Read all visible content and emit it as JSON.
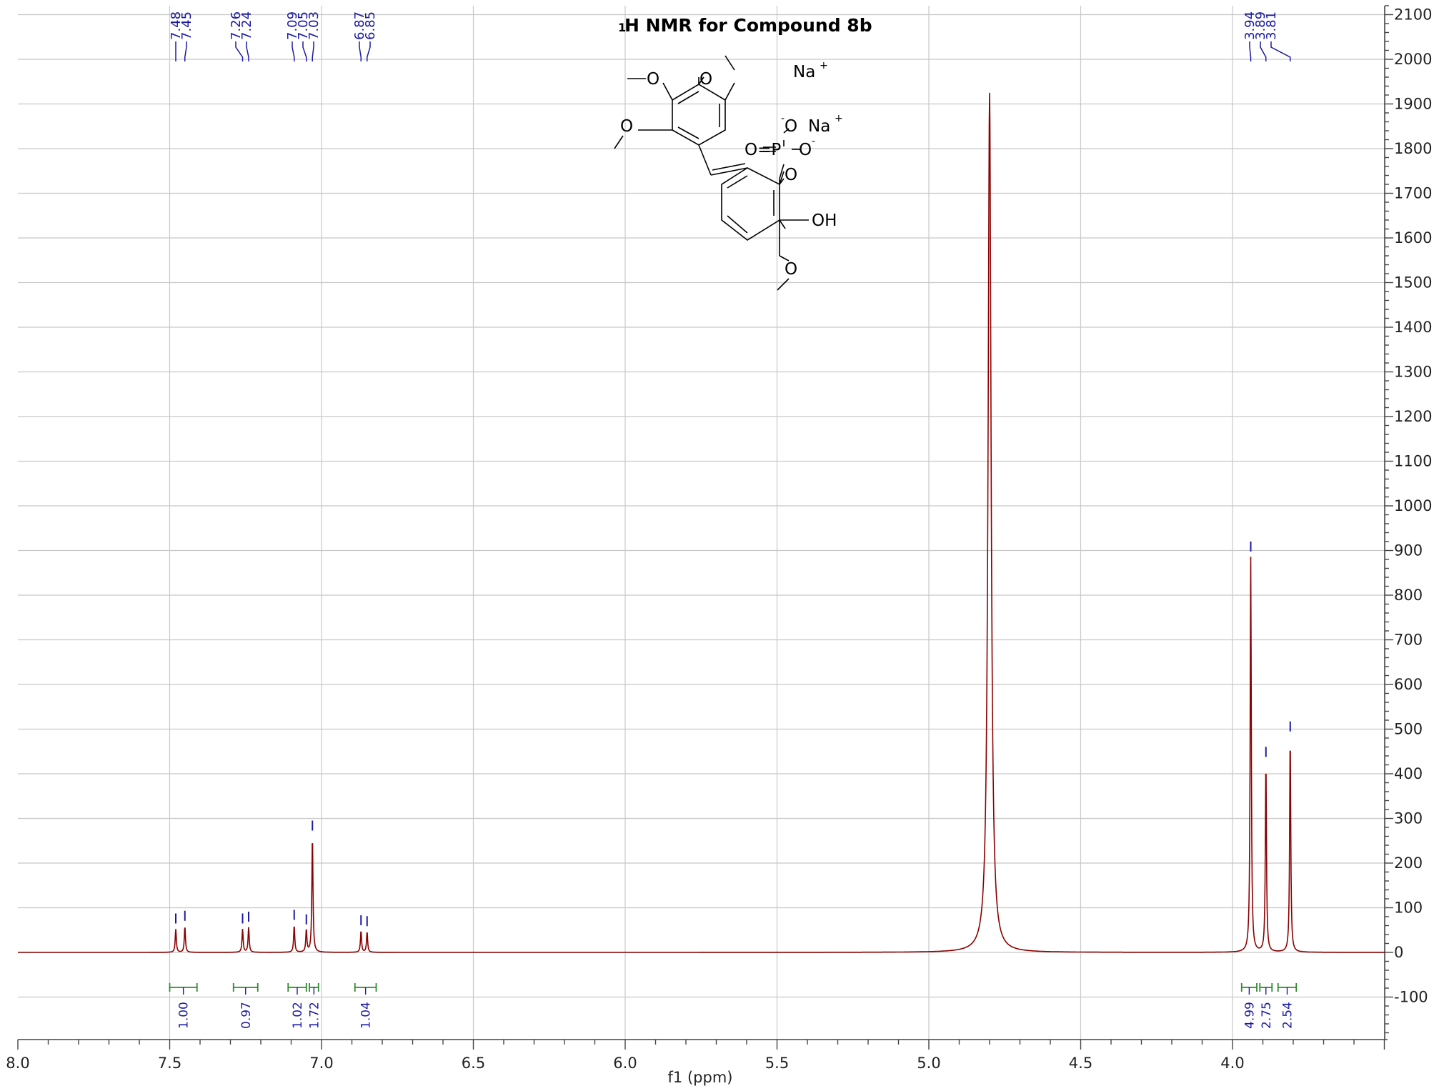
{
  "chart_data": {
    "type": "line",
    "title": "H NMR for Compound 8b",
    "title_superscript": "1",
    "xlabel": "f1 (ppm)",
    "ylabel": "",
    "x_reversed": true,
    "xlim": [
      8.0,
      3.5
    ],
    "ylim": [
      -200,
      2120
    ],
    "x_ticks": [
      "8.0",
      "7.5",
      "7.0",
      "6.5",
      "6.0",
      "5.5",
      "5.0",
      "4.5",
      "4.0"
    ],
    "y_ticks": [
      "-100",
      "0",
      "100",
      "200",
      "300",
      "400",
      "500",
      "600",
      "700",
      "800",
      "900",
      "1000",
      "1100",
      "1200",
      "1300",
      "1400",
      "1500",
      "1600",
      "1700",
      "1800",
      "1900",
      "2000",
      "2100"
    ],
    "grid": true,
    "series": [
      {
        "color": "#8b0000",
        "peaks": [
          {
            "ppm": 7.48,
            "height": 52
          },
          {
            "ppm": 7.45,
            "height": 58
          },
          {
            "ppm": 7.26,
            "height": 52
          },
          {
            "ppm": 7.24,
            "height": 56
          },
          {
            "ppm": 7.09,
            "height": 60
          },
          {
            "ppm": 7.05,
            "height": 50
          },
          {
            "ppm": 7.03,
            "height": 260
          },
          {
            "ppm": 6.87,
            "height": 48
          },
          {
            "ppm": 6.85,
            "height": 46
          },
          {
            "ppm": 4.8,
            "height": 1925
          },
          {
            "ppm": 3.94,
            "height": 885
          },
          {
            "ppm": 3.89,
            "height": 425
          },
          {
            "ppm": 3.81,
            "height": 482
          }
        ]
      }
    ],
    "peak_labels": [
      {
        "group": [
          "7.48",
          "7.45"
        ],
        "ppm": [
          7.48,
          7.45
        ]
      },
      {
        "group": [
          "7.26",
          "7.24"
        ],
        "ppm": [
          7.26,
          7.24
        ]
      },
      {
        "group": [
          "7.09",
          "7.05",
          "7.03"
        ],
        "ppm": [
          7.09,
          7.05,
          7.03
        ]
      },
      {
        "group": [
          "6.87",
          "6.85"
        ],
        "ppm": [
          6.87,
          6.85
        ]
      },
      {
        "group": [
          "3.94",
          "3.89",
          "3.81"
        ],
        "ppm": [
          3.94,
          3.89,
          3.81
        ]
      }
    ],
    "integrals": [
      {
        "from": 7.5,
        "to": 7.41,
        "value": "1.00"
      },
      {
        "from": 7.29,
        "to": 7.21,
        "value": "0.97"
      },
      {
        "from": 7.11,
        "to": 7.05,
        "value": "1.02"
      },
      {
        "from": 7.04,
        "to": 7.01,
        "value": "1.72"
      },
      {
        "from": 6.89,
        "to": 6.82,
        "value": "1.04"
      },
      {
        "from": 3.97,
        "to": 3.92,
        "value": "4.99"
      },
      {
        "from": 3.91,
        "to": 3.87,
        "value": "2.75"
      },
      {
        "from": 3.85,
        "to": 3.79,
        "value": "2.54"
      }
    ],
    "structure_labels": {
      "na1": "Na",
      "na2": "Na",
      "plus": "+",
      "minus": "-",
      "o_minus_top": "O",
      "o_minus_right": "O",
      "o_double": "O=P",
      "o_ester": "O",
      "oh": "OH",
      "o_ome_1": "O",
      "o_ome_2": "O",
      "o_ome_3": "O",
      "o_ome_4": "O"
    }
  }
}
